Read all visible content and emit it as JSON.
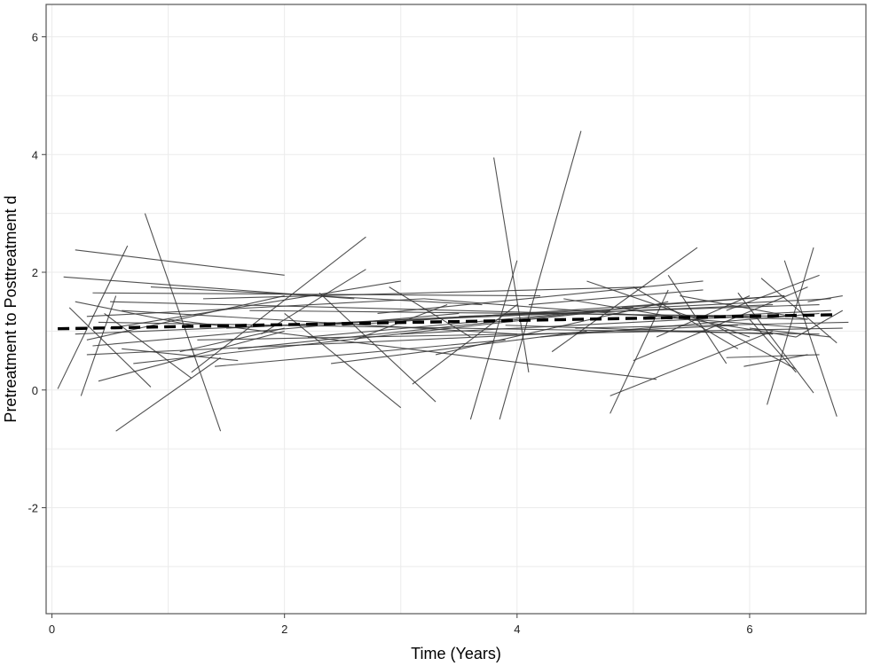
{
  "chart_data": {
    "type": "line",
    "xlabel": "Time (Years)",
    "ylabel": "Pretreatment to Posttreatment d",
    "xlim": [
      -0.05,
      7.0
    ],
    "ylim": [
      -3.8,
      6.55
    ],
    "x_ticks": [
      0,
      2,
      4,
      6
    ],
    "y_ticks": [
      -2,
      0,
      2,
      4,
      6
    ],
    "grid": true,
    "colors": {
      "panel_border": "#555555",
      "grid": "#ebebeb",
      "segment": "#333333",
      "trend": "#000000"
    },
    "trend": {
      "x": [
        0.05,
        6.75
      ],
      "y": [
        1.04,
        1.28
      ]
    },
    "segments": [
      [
        [
          0.2,
          2.38
        ],
        [
          2.0,
          1.95
        ]
      ],
      [
        [
          0.1,
          1.92
        ],
        [
          2.6,
          1.55
        ]
      ],
      [
        [
          0.8,
          3.0
        ],
        [
          1.45,
          -0.7
        ]
      ],
      [
        [
          0.05,
          0.02
        ],
        [
          0.65,
          2.45
        ]
      ],
      [
        [
          0.55,
          -0.7
        ],
        [
          1.45,
          0.55
        ]
      ],
      [
        [
          0.25,
          -0.1
        ],
        [
          0.55,
          1.6
        ]
      ],
      [
        [
          0.3,
          0.85
        ],
        [
          2.0,
          1.6
        ]
      ],
      [
        [
          0.2,
          1.5
        ],
        [
          1.2,
          1.1
        ]
      ],
      [
        [
          0.3,
          1.25
        ],
        [
          3.2,
          1.55
        ]
      ],
      [
        [
          0.4,
          0.15
        ],
        [
          2.0,
          1.0
        ]
      ],
      [
        [
          0.15,
          1.4
        ],
        [
          0.85,
          0.05
        ]
      ],
      [
        [
          0.35,
          1.65
        ],
        [
          4.2,
          1.6
        ]
      ],
      [
        [
          0.5,
          1.05
        ],
        [
          3.0,
          1.85
        ]
      ],
      [
        [
          0.6,
          0.7
        ],
        [
          1.6,
          0.5
        ]
      ],
      [
        [
          0.45,
          1.3
        ],
        [
          1.2,
          0.2
        ]
      ],
      [
        [
          0.2,
          0.95
        ],
        [
          6.2,
          1.45
        ]
      ],
      [
        [
          0.3,
          0.6
        ],
        [
          5.9,
          1.1
        ]
      ],
      [
        [
          0.4,
          1.15
        ],
        [
          6.6,
          0.95
        ]
      ],
      [
        [
          0.5,
          1.5
        ],
        [
          6.5,
          1.2
        ]
      ],
      [
        [
          0.35,
          0.75
        ],
        [
          3.5,
          1.3
        ]
      ],
      [
        [
          0.6,
          1.35
        ],
        [
          4.0,
          0.95
        ]
      ],
      [
        [
          0.7,
          0.45
        ],
        [
          4.8,
          1.35
        ]
      ],
      [
        [
          0.85,
          1.75
        ],
        [
          3.7,
          1.45
        ]
      ],
      [
        [
          1.0,
          1.2
        ],
        [
          5.2,
          0.18
        ]
      ],
      [
        [
          1.1,
          0.65
        ],
        [
          2.0,
          1.05
        ]
      ],
      [
        [
          1.2,
          0.3
        ],
        [
          2.7,
          2.6
        ]
      ],
      [
        [
          1.25,
          0.85
        ],
        [
          6.8,
          1.05
        ]
      ],
      [
        [
          1.3,
          1.55
        ],
        [
          5.1,
          1.75
        ]
      ],
      [
        [
          1.4,
          0.4
        ],
        [
          3.9,
          0.85
        ]
      ],
      [
        [
          1.5,
          1.05
        ],
        [
          6.7,
          1.55
        ]
      ],
      [
        [
          1.6,
          0.7
        ],
        [
          4.5,
          1.3
        ]
      ],
      [
        [
          1.7,
          1.35
        ],
        [
          6.4,
          1.25
        ]
      ],
      [
        [
          1.8,
          0.95
        ],
        [
          2.7,
          2.05
        ]
      ],
      [
        [
          2.0,
          1.3
        ],
        [
          3.0,
          -0.3
        ]
      ],
      [
        [
          2.2,
          0.9
        ],
        [
          5.0,
          1.4
        ]
      ],
      [
        [
          2.3,
          1.65
        ],
        [
          3.3,
          -0.2
        ]
      ],
      [
        [
          2.4,
          0.45
        ],
        [
          4.6,
          1.0
        ]
      ],
      [
        [
          2.5,
          1.1
        ],
        [
          6.3,
          1.6
        ]
      ],
      [
        [
          2.6,
          0.85
        ],
        [
          3.4,
          1.45
        ]
      ],
      [
        [
          2.8,
          1.3
        ],
        [
          5.6,
          1.85
        ]
      ],
      [
        [
          2.9,
          1.75
        ],
        [
          3.6,
          0.9
        ]
      ],
      [
        [
          3.0,
          0.95
        ],
        [
          6.0,
          1.25
        ]
      ],
      [
        [
          3.1,
          0.1
        ],
        [
          4.0,
          1.45
        ]
      ],
      [
        [
          3.2,
          1.55
        ],
        [
          6.5,
          1.05
        ]
      ],
      [
        [
          3.3,
          0.6
        ],
        [
          5.3,
          1.5
        ]
      ],
      [
        [
          3.5,
          1.25
        ],
        [
          6.6,
          1.45
        ]
      ],
      [
        [
          3.6,
          -0.5
        ],
        [
          4.0,
          2.2
        ]
      ],
      [
        [
          3.8,
          3.95
        ],
        [
          4.1,
          0.3
        ]
      ],
      [
        [
          3.85,
          -0.5
        ],
        [
          4.55,
          4.4
        ]
      ],
      [
        [
          3.9,
          1.1
        ],
        [
          6.2,
          0.95
        ]
      ],
      [
        [
          4.1,
          1.45
        ],
        [
          5.6,
          1.7
        ]
      ],
      [
        [
          4.2,
          0.9
        ],
        [
          6.6,
          1.3
        ]
      ],
      [
        [
          4.3,
          0.65
        ],
        [
          5.55,
          2.42
        ]
      ],
      [
        [
          4.4,
          1.55
        ],
        [
          6.4,
          0.9
        ]
      ],
      [
        [
          4.5,
          1.05
        ],
        [
          6.85,
          1.15
        ]
      ],
      [
        [
          4.6,
          1.85
        ],
        [
          6.0,
          0.9
        ]
      ],
      [
        [
          4.8,
          -0.1
        ],
        [
          6.2,
          1.0
        ]
      ],
      [
        [
          4.8,
          -0.4
        ],
        [
          5.3,
          1.7
        ]
      ],
      [
        [
          4.9,
          1.4
        ],
        [
          6.3,
          1.6
        ]
      ],
      [
        [
          5.0,
          1.75
        ],
        [
          5.9,
          0.7
        ]
      ],
      [
        [
          5.0,
          0.5
        ],
        [
          6.5,
          1.75
        ]
      ],
      [
        [
          5.1,
          1.2
        ],
        [
          6.7,
          1.35
        ]
      ],
      [
        [
          5.2,
          0.9
        ],
        [
          6.0,
          1.6
        ]
      ],
      [
        [
          5.3,
          1.95
        ],
        [
          5.8,
          0.45
        ]
      ],
      [
        [
          5.4,
          1.6
        ],
        [
          6.5,
          1.2
        ]
      ],
      [
        [
          5.7,
          1.1
        ],
        [
          6.4,
          0.35
        ]
      ],
      [
        [
          5.8,
          1.35
        ],
        [
          6.6,
          1.95
        ]
      ],
      [
        [
          5.8,
          0.55
        ],
        [
          6.6,
          0.6
        ]
      ],
      [
        [
          5.9,
          1.65
        ],
        [
          6.55,
          -0.05
        ]
      ],
      [
        [
          5.95,
          0.4
        ],
        [
          6.5,
          0.6
        ]
      ],
      [
        [
          6.0,
          1.2
        ],
        [
          6.4,
          0.3
        ]
      ],
      [
        [
          6.0,
          1.05
        ],
        [
          6.7,
          0.9
        ]
      ],
      [
        [
          6.1,
          1.9
        ],
        [
          6.75,
          0.8
        ]
      ],
      [
        [
          6.15,
          -0.25
        ],
        [
          6.55,
          2.42
        ]
      ],
      [
        [
          6.3,
          2.2
        ],
        [
          6.75,
          -0.45
        ]
      ],
      [
        [
          6.4,
          0.9
        ],
        [
          6.8,
          1.35
        ]
      ],
      [
        [
          6.5,
          1.5
        ],
        [
          6.8,
          1.6
        ]
      ]
    ]
  }
}
